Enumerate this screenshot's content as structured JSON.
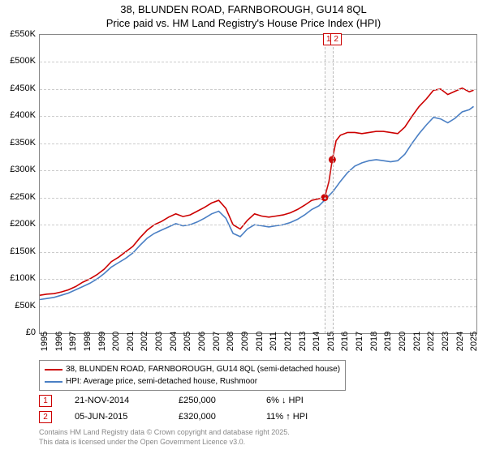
{
  "title_line1": "38, BLUNDEN ROAD, FARNBOROUGH, GU14 8QL",
  "title_line2": "Price paid vs. HM Land Registry's House Price Index (HPI)",
  "chart": {
    "type": "line",
    "background_color": "#ffffff",
    "grid_color": "#cccccc",
    "line_width": 1.6,
    "x_domain": [
      1995,
      2025.5
    ],
    "y_domain": [
      0,
      550
    ],
    "y_ticks": [
      0,
      50,
      100,
      150,
      200,
      250,
      300,
      350,
      400,
      450,
      500,
      550
    ],
    "y_tick_labels": [
      "£0",
      "£50K",
      "£100K",
      "£150K",
      "£200K",
      "£250K",
      "£300K",
      "£350K",
      "£400K",
      "£450K",
      "£500K",
      "£550K"
    ],
    "x_ticks": [
      1995,
      1996,
      1997,
      1998,
      1999,
      2000,
      2001,
      2002,
      2003,
      2004,
      2005,
      2006,
      2007,
      2008,
      2009,
      2010,
      2011,
      2012,
      2013,
      2014,
      2015,
      2016,
      2017,
      2018,
      2019,
      2020,
      2021,
      2022,
      2023,
      2024,
      2025
    ],
    "marker_band": {
      "x_start": 2014.9,
      "x_end": 2015.43
    },
    "marker_labels": [
      {
        "num": "1",
        "x": 2014.9
      },
      {
        "num": "2",
        "x": 2015.43
      }
    ],
    "sale_points": [
      {
        "x": 2014.9,
        "y": 250
      },
      {
        "x": 2015.43,
        "y": 320
      }
    ],
    "series": [
      {
        "name": "price_paid",
        "color": "#cc0000",
        "points": [
          [
            1995,
            70
          ],
          [
            1995.5,
            72
          ],
          [
            1996,
            73
          ],
          [
            1996.5,
            76
          ],
          [
            1997,
            80
          ],
          [
            1997.5,
            86
          ],
          [
            1998,
            94
          ],
          [
            1998.5,
            100
          ],
          [
            1999,
            108
          ],
          [
            1999.5,
            118
          ],
          [
            2000,
            132
          ],
          [
            2000.5,
            140
          ],
          [
            2001,
            150
          ],
          [
            2001.5,
            160
          ],
          [
            2002,
            176
          ],
          [
            2002.5,
            190
          ],
          [
            2003,
            200
          ],
          [
            2003.5,
            206
          ],
          [
            2004,
            214
          ],
          [
            2004.5,
            220
          ],
          [
            2005,
            215
          ],
          [
            2005.5,
            218
          ],
          [
            2006,
            225
          ],
          [
            2006.5,
            232
          ],
          [
            2007,
            240
          ],
          [
            2007.5,
            245
          ],
          [
            2008,
            230
          ],
          [
            2008.5,
            200
          ],
          [
            2009,
            192
          ],
          [
            2009.5,
            208
          ],
          [
            2010,
            220
          ],
          [
            2010.5,
            216
          ],
          [
            2011,
            214
          ],
          [
            2011.5,
            216
          ],
          [
            2012,
            218
          ],
          [
            2012.5,
            222
          ],
          [
            2013,
            228
          ],
          [
            2013.5,
            236
          ],
          [
            2014,
            245
          ],
          [
            2014.5,
            248
          ],
          [
            2014.9,
            250
          ],
          [
            2015.2,
            280
          ],
          [
            2015.43,
            320
          ],
          [
            2015.7,
            355
          ],
          [
            2016,
            365
          ],
          [
            2016.5,
            370
          ],
          [
            2017,
            370
          ],
          [
            2017.5,
            368
          ],
          [
            2018,
            370
          ],
          [
            2018.5,
            372
          ],
          [
            2019,
            372
          ],
          [
            2019.5,
            370
          ],
          [
            2020,
            368
          ],
          [
            2020.5,
            380
          ],
          [
            2021,
            400
          ],
          [
            2021.5,
            418
          ],
          [
            2022,
            432
          ],
          [
            2022.5,
            448
          ],
          [
            2023,
            450
          ],
          [
            2023.5,
            440
          ],
          [
            2024,
            446
          ],
          [
            2024.5,
            452
          ],
          [
            2025,
            445
          ],
          [
            2025.3,
            448
          ]
        ]
      },
      {
        "name": "hpi",
        "color": "#4a7fc4",
        "points": [
          [
            1995,
            62
          ],
          [
            1995.5,
            64
          ],
          [
            1996,
            66
          ],
          [
            1996.5,
            70
          ],
          [
            1997,
            74
          ],
          [
            1997.5,
            80
          ],
          [
            1998,
            86
          ],
          [
            1998.5,
            92
          ],
          [
            1999,
            100
          ],
          [
            1999.5,
            110
          ],
          [
            2000,
            122
          ],
          [
            2000.5,
            130
          ],
          [
            2001,
            138
          ],
          [
            2001.5,
            148
          ],
          [
            2002,
            162
          ],
          [
            2002.5,
            175
          ],
          [
            2003,
            184
          ],
          [
            2003.5,
            190
          ],
          [
            2004,
            196
          ],
          [
            2004.5,
            202
          ],
          [
            2005,
            198
          ],
          [
            2005.5,
            200
          ],
          [
            2006,
            205
          ],
          [
            2006.5,
            212
          ],
          [
            2007,
            220
          ],
          [
            2007.5,
            225
          ],
          [
            2008,
            212
          ],
          [
            2008.5,
            184
          ],
          [
            2009,
            178
          ],
          [
            2009.5,
            192
          ],
          [
            2010,
            200
          ],
          [
            2010.5,
            198
          ],
          [
            2011,
            196
          ],
          [
            2011.5,
            198
          ],
          [
            2012,
            200
          ],
          [
            2012.5,
            204
          ],
          [
            2013,
            210
          ],
          [
            2013.5,
            218
          ],
          [
            2014,
            228
          ],
          [
            2014.5,
            235
          ],
          [
            2015,
            248
          ],
          [
            2015.5,
            262
          ],
          [
            2016,
            280
          ],
          [
            2016.5,
            296
          ],
          [
            2017,
            308
          ],
          [
            2017.5,
            314
          ],
          [
            2018,
            318
          ],
          [
            2018.5,
            320
          ],
          [
            2019,
            318
          ],
          [
            2019.5,
            316
          ],
          [
            2020,
            318
          ],
          [
            2020.5,
            330
          ],
          [
            2021,
            350
          ],
          [
            2021.5,
            368
          ],
          [
            2022,
            384
          ],
          [
            2022.5,
            398
          ],
          [
            2023,
            395
          ],
          [
            2023.5,
            388
          ],
          [
            2024,
            396
          ],
          [
            2024.5,
            408
          ],
          [
            2025,
            412
          ],
          [
            2025.3,
            418
          ]
        ]
      }
    ]
  },
  "legend": [
    {
      "color": "#cc0000",
      "label": "38, BLUNDEN ROAD, FARNBOROUGH, GU14 8QL (semi-detached house)"
    },
    {
      "color": "#4a7fc4",
      "label": "HPI: Average price, semi-detached house, Rushmoor"
    }
  ],
  "sales": [
    {
      "num": "1",
      "date": "21-NOV-2014",
      "price": "£250,000",
      "delta": "6% ↓ HPI"
    },
    {
      "num": "2",
      "date": "05-JUN-2015",
      "price": "£320,000",
      "delta": "11% ↑ HPI"
    }
  ],
  "footer_line1": "Contains HM Land Registry data © Crown copyright and database right 2025.",
  "footer_line2": "This data is licensed under the Open Government Licence v3.0."
}
